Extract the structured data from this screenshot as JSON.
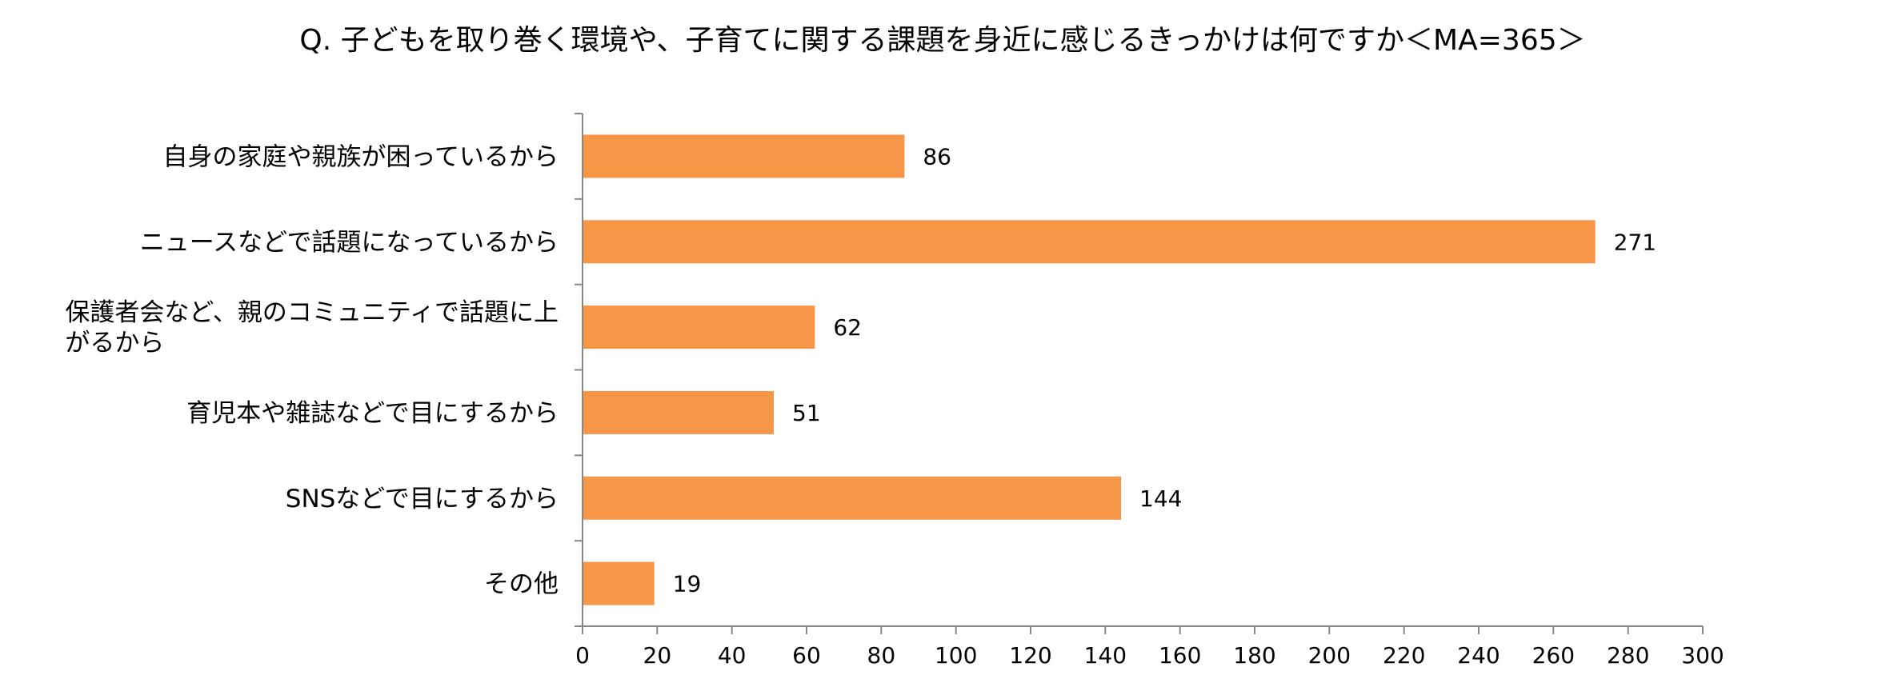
{
  "chart_data": {
    "type": "bar",
    "orientation": "horizontal",
    "title": "Q. 子どもを取り巻く環境や、子育てに関する課題を身近に感じるきっかけは何ですか＜MA=365＞",
    "categories": [
      [
        "自身の家庭や親族が困っているから"
      ],
      [
        "ニュースなどで話題になっているから"
      ],
      [
        "保護者会など、親のコミュニティで話題に上",
        "がるから"
      ],
      [
        "育児本や雑誌などで目にするから"
      ],
      [
        "SNSなどで目にするから"
      ],
      [
        "その他"
      ]
    ],
    "values": [
      86,
      271,
      62,
      51,
      144,
      19
    ],
    "xlim": [
      0,
      300
    ],
    "xticks": [
      0,
      20,
      40,
      60,
      80,
      100,
      120,
      140,
      160,
      180,
      200,
      220,
      240,
      260,
      280,
      300
    ],
    "grid": false,
    "legend": "none",
    "bar_color": "#F79646",
    "axis_color": "#888888",
    "xlabel": "",
    "ylabel": ""
  }
}
